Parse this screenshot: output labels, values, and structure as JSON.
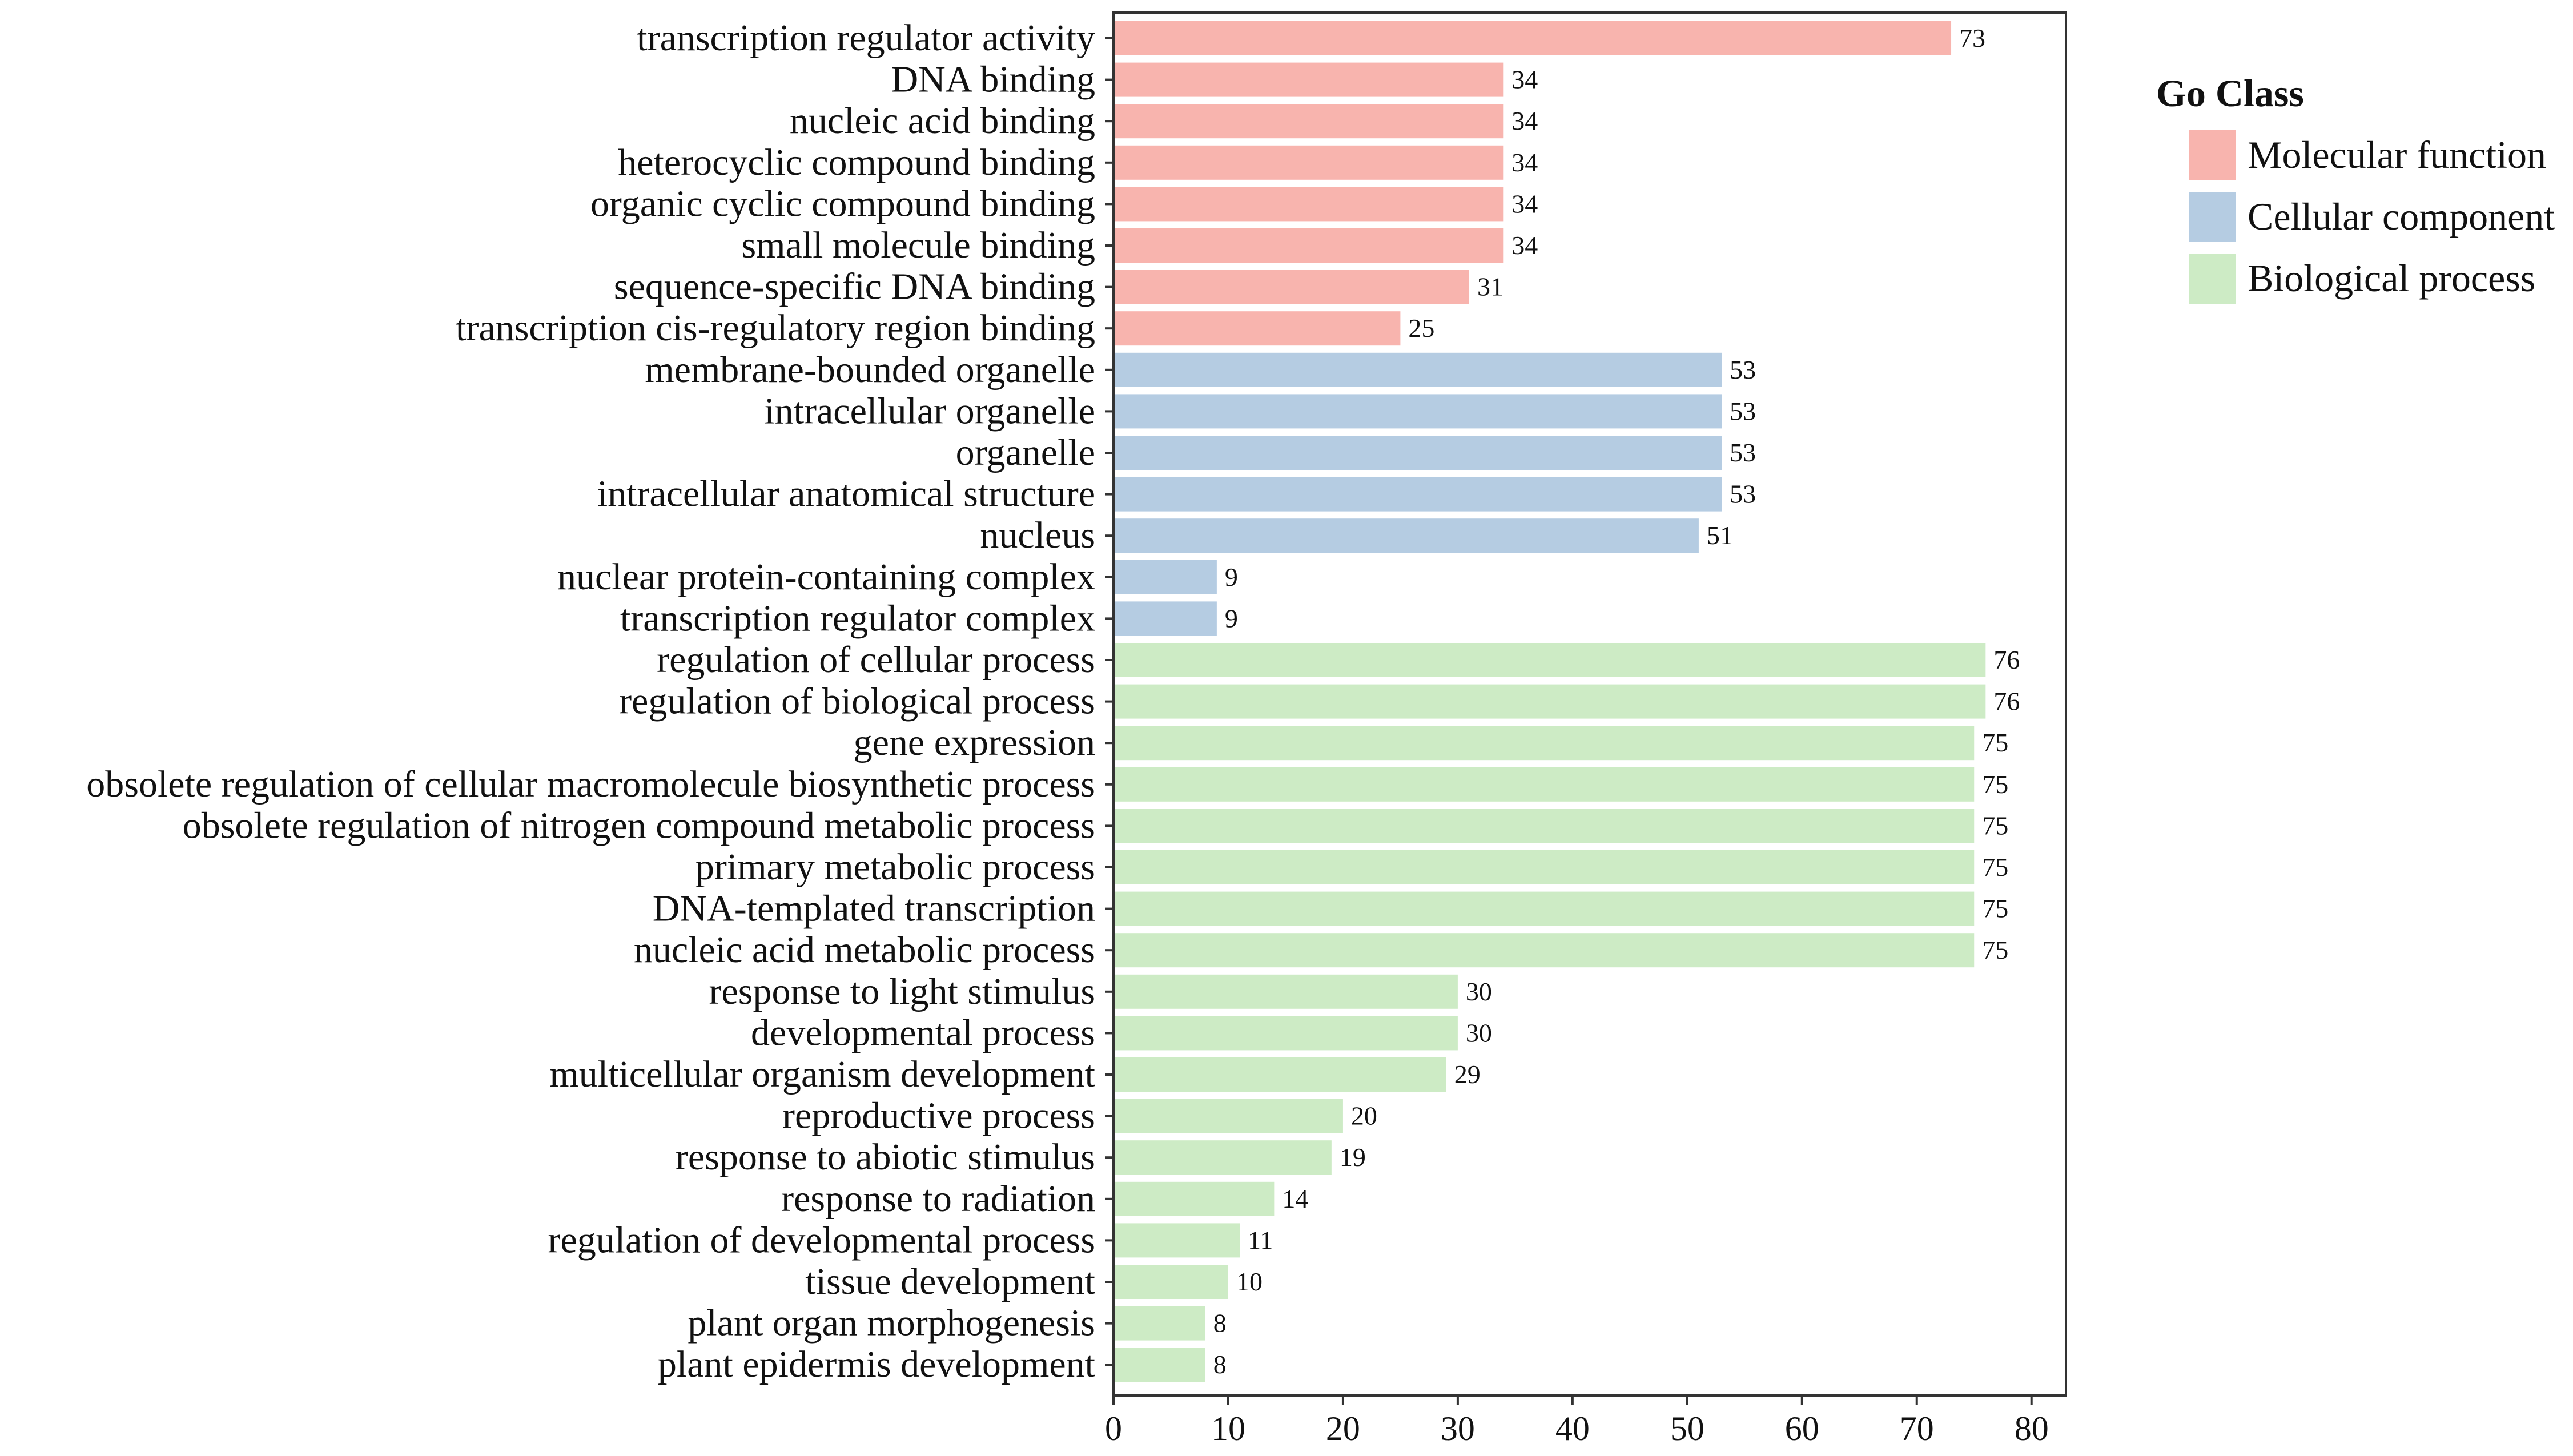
{
  "chart_data": {
    "type": "bar",
    "orientation": "horizontal",
    "title": "",
    "xlabel": "",
    "ylabel": "",
    "xlim": [
      0,
      83
    ],
    "xticks": [
      0,
      10,
      20,
      30,
      40,
      50,
      60,
      70,
      80
    ],
    "grid": false,
    "legend": {
      "title": "Go Class",
      "position": "right",
      "entries": [
        {
          "key": "MF",
          "name": "Molecular function",
          "color": "#F8B4AE"
        },
        {
          "key": "CC",
          "name": "Cellular component",
          "color": "#B5CCE2"
        },
        {
          "key": "BP",
          "name": "Biological process",
          "color": "#CDEBC5"
        }
      ]
    },
    "categories": [
      {
        "label": "transcription regulator activity",
        "value": 73,
        "class": "MF"
      },
      {
        "label": "DNA binding",
        "value": 34,
        "class": "MF"
      },
      {
        "label": "nucleic acid binding",
        "value": 34,
        "class": "MF"
      },
      {
        "label": "heterocyclic compound binding",
        "value": 34,
        "class": "MF"
      },
      {
        "label": "organic cyclic compound binding",
        "value": 34,
        "class": "MF"
      },
      {
        "label": "small molecule binding",
        "value": 34,
        "class": "MF"
      },
      {
        "label": "sequence-specific DNA binding",
        "value": 31,
        "class": "MF"
      },
      {
        "label": "transcription cis-regulatory region binding",
        "value": 25,
        "class": "MF"
      },
      {
        "label": "membrane-bounded organelle",
        "value": 53,
        "class": "CC"
      },
      {
        "label": "intracellular organelle",
        "value": 53,
        "class": "CC"
      },
      {
        "label": "organelle",
        "value": 53,
        "class": "CC"
      },
      {
        "label": "intracellular anatomical structure",
        "value": 53,
        "class": "CC"
      },
      {
        "label": "nucleus",
        "value": 51,
        "class": "CC"
      },
      {
        "label": "nuclear protein-containing complex",
        "value": 9,
        "class": "CC"
      },
      {
        "label": "transcription regulator complex",
        "value": 9,
        "class": "CC"
      },
      {
        "label": "regulation of cellular process",
        "value": 76,
        "class": "BP"
      },
      {
        "label": "regulation of biological process",
        "value": 76,
        "class": "BP"
      },
      {
        "label": "gene expression",
        "value": 75,
        "class": "BP"
      },
      {
        "label": "obsolete regulation of cellular macromolecule biosynthetic process",
        "value": 75,
        "class": "BP"
      },
      {
        "label": "obsolete regulation of nitrogen compound metabolic process",
        "value": 75,
        "class": "BP"
      },
      {
        "label": "primary metabolic process",
        "value": 75,
        "class": "BP"
      },
      {
        "label": "DNA-templated transcription",
        "value": 75,
        "class": "BP"
      },
      {
        "label": "nucleic acid metabolic process",
        "value": 75,
        "class": "BP"
      },
      {
        "label": "response to light stimulus",
        "value": 30,
        "class": "BP"
      },
      {
        "label": "developmental process",
        "value": 30,
        "class": "BP"
      },
      {
        "label": "multicellular organism development",
        "value": 29,
        "class": "BP"
      },
      {
        "label": "reproductive process",
        "value": 20,
        "class": "BP"
      },
      {
        "label": "response to abiotic stimulus",
        "value": 19,
        "class": "BP"
      },
      {
        "label": "response to radiation",
        "value": 14,
        "class": "BP"
      },
      {
        "label": "regulation of developmental process",
        "value": 11,
        "class": "BP"
      },
      {
        "label": "tissue development",
        "value": 10,
        "class": "BP"
      },
      {
        "label": "plant organ morphogenesis",
        "value": 8,
        "class": "BP"
      },
      {
        "label": "plant epidermis development",
        "value": 8,
        "class": "BP"
      }
    ]
  }
}
